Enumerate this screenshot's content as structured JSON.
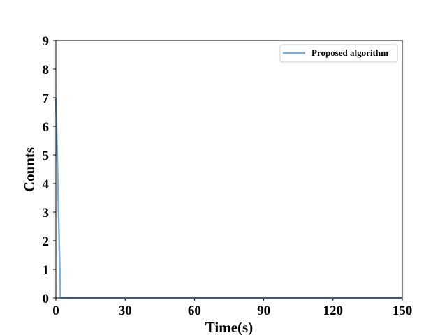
{
  "chart_data": {
    "type": "line",
    "title": "",
    "xlabel": "Time(s)",
    "ylabel": "Counts",
    "xlim": [
      0,
      150
    ],
    "ylim": [
      0,
      9
    ],
    "xticks": [
      0,
      30,
      60,
      90,
      120,
      150
    ],
    "yticks": [
      0,
      1,
      2,
      3,
      4,
      5,
      6,
      7,
      8,
      9
    ],
    "grid": false,
    "legend_position": "top-right",
    "series": [
      {
        "name": "Proposed algorithm",
        "color": "#7fb0d9",
        "x": [
          0,
          2,
          150
        ],
        "y": [
          7,
          0,
          0
        ]
      }
    ]
  }
}
